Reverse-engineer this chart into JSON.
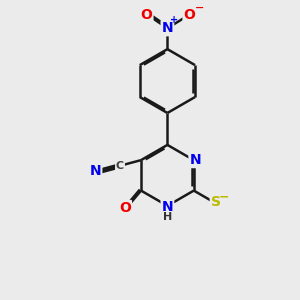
{
  "background_color": "#ebebeb",
  "bond_color": "#1a1a1a",
  "bond_width": 1.8,
  "dbo": 0.055,
  "atom_colors": {
    "C": "#404040",
    "N": "#0000ee",
    "O": "#ee0000",
    "S": "#bbbb00",
    "H": "#333333"
  },
  "font_size": 10,
  "font_size_small": 8
}
